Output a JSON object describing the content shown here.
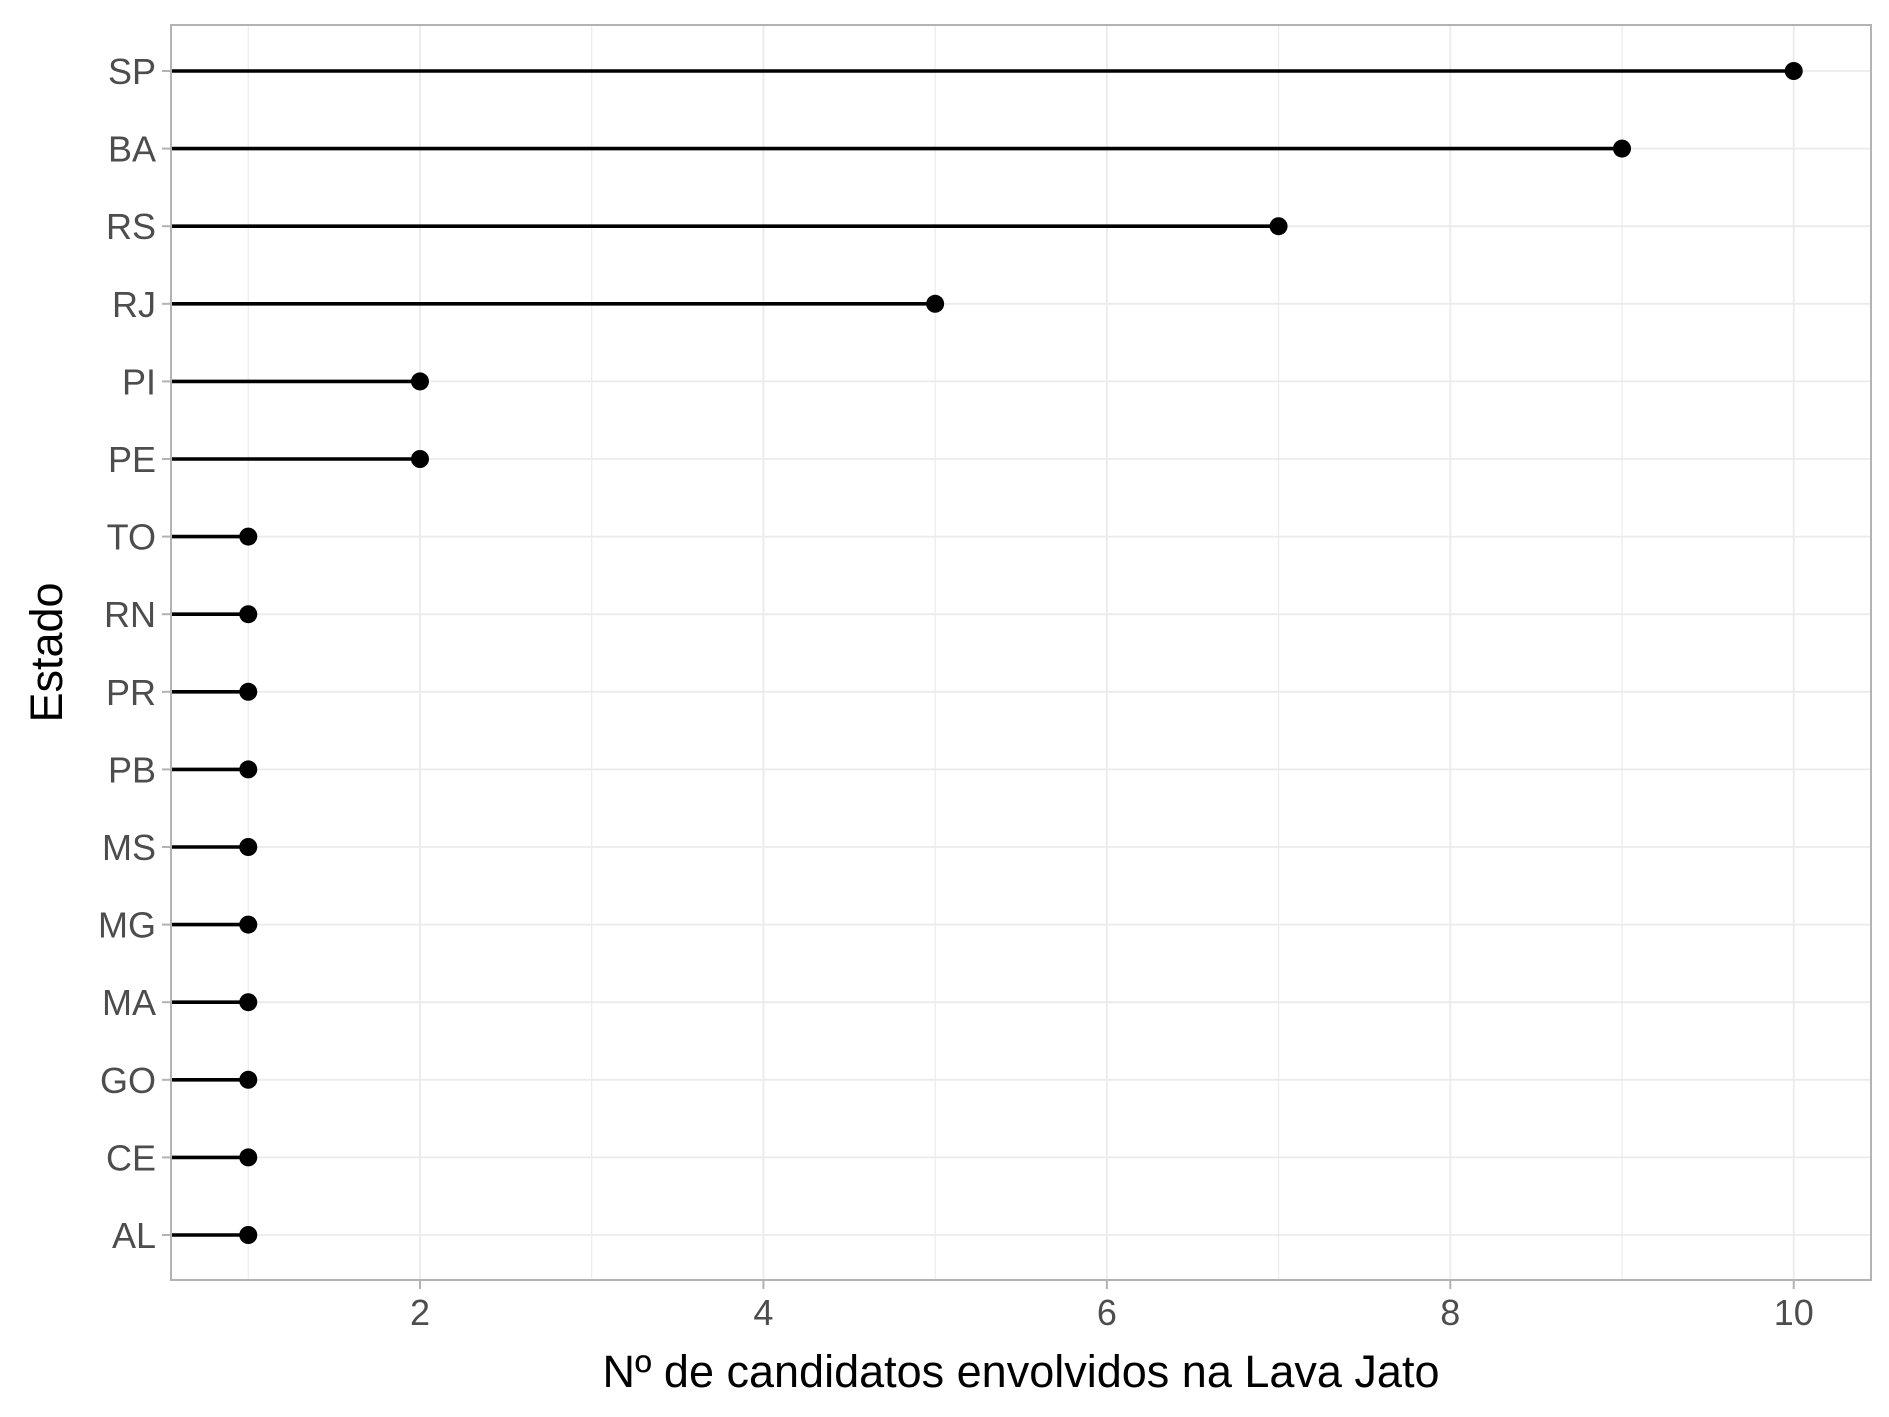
{
  "chart_data": {
    "type": "lollipop",
    "orientation": "horizontal",
    "xlabel": "Nº de candidatos envolvidos na Lava Jato",
    "ylabel": "Estado",
    "categories": [
      "SP",
      "BA",
      "RS",
      "RJ",
      "PI",
      "PE",
      "TO",
      "RN",
      "PR",
      "PB",
      "MS",
      "MG",
      "MA",
      "GO",
      "CE",
      "AL"
    ],
    "values": [
      10,
      9,
      7,
      5,
      2,
      2,
      1,
      1,
      1,
      1,
      1,
      1,
      1,
      1,
      1,
      1
    ],
    "xlim": [
      0.55,
      10.45
    ],
    "x_ticks": [
      2,
      4,
      6,
      8,
      10
    ],
    "x_tick_labels": [
      "2",
      "4",
      "6",
      "8",
      "10"
    ],
    "x_minor_gridlines": [
      1,
      3,
      5,
      7,
      9
    ],
    "grid": true,
    "legend": "none",
    "colors": {
      "mark": "#000000",
      "grid": "#ebebeb",
      "panel_border": "#b3b3b3",
      "tick_text": "#4d4d4d",
      "title_text": "#000000"
    }
  }
}
